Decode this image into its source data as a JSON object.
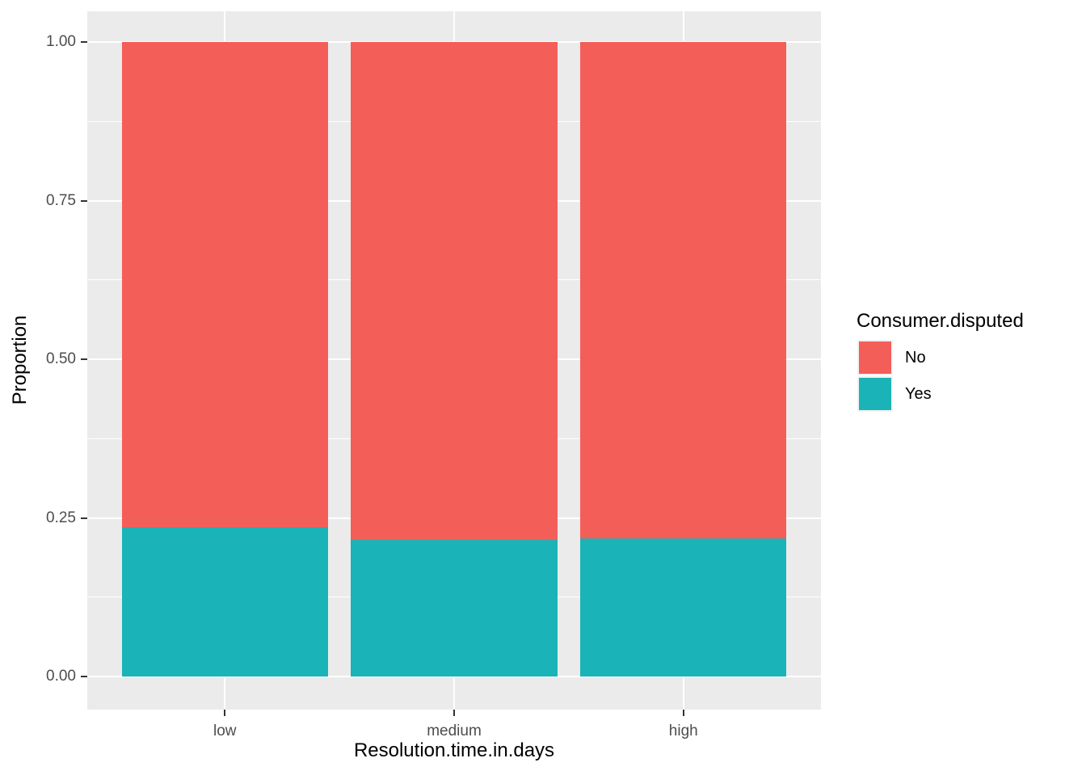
{
  "chart_data": {
    "type": "bar",
    "stacked": true,
    "normalized": true,
    "title": "",
    "xlabel": "Resolution.time.in.days",
    "ylabel": "Proportion",
    "categories": [
      "low",
      "medium",
      "high"
    ],
    "series": [
      {
        "name": "No",
        "color": "#F45E59",
        "values": [
          0.765,
          0.785,
          0.783
        ]
      },
      {
        "name": "Yes",
        "color": "#1AB3B8",
        "values": [
          0.235,
          0.215,
          0.217
        ]
      }
    ],
    "ylim": [
      0,
      1
    ],
    "yticks": [
      {
        "label": "0.00",
        "value": 0
      },
      {
        "label": "0.25",
        "value": 0.25
      },
      {
        "label": "0.50",
        "value": 0.5
      },
      {
        "label": "0.75",
        "value": 0.75
      },
      {
        "label": "1.00",
        "value": 1
      }
    ],
    "minor_yticks": [
      0.125,
      0.375,
      0.625,
      0.875
    ],
    "legend": {
      "title": "Consumer.disputed",
      "position": "right",
      "entries": [
        "No",
        "Yes"
      ]
    },
    "grid": {
      "major": true,
      "minor": true,
      "color": "#ffffff"
    },
    "panel_background": "#EBEBEB",
    "bar_width_fraction": 0.9,
    "tick_label_color": "#4D4D4D"
  }
}
